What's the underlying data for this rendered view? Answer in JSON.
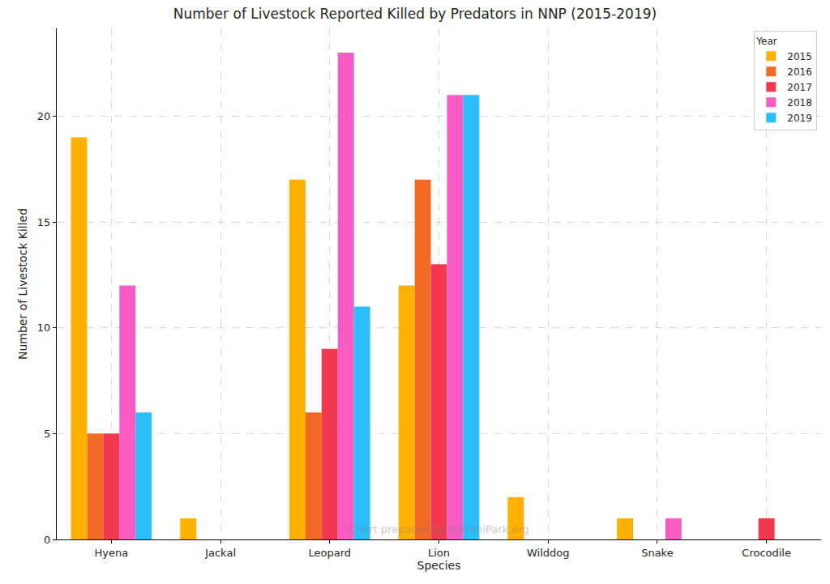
{
  "chart_data": {
    "type": "bar",
    "title": "Number of Livestock Reported Killed by Predators in NNP (2015-2019)",
    "x_label": "Species",
    "y_label": "Number of Livestock Killed",
    "legend_title": "Year",
    "annotations": [
      "Chart prepared by NairobiPark.org"
    ],
    "categories": [
      "Hyena",
      "Jackal",
      "Leopard",
      "Lion",
      "Wilddog",
      "Snake",
      "Crocodile"
    ],
    "series": [
      {
        "name": "2015",
        "color": "#ffb000",
        "values": [
          19,
          1,
          17,
          12,
          2,
          1,
          0
        ]
      },
      {
        "name": "2016",
        "color": "#f26a24",
        "values": [
          5,
          0,
          6,
          17,
          0,
          0,
          0
        ]
      },
      {
        "name": "2017",
        "color": "#f2384f",
        "values": [
          5,
          0,
          9,
          13,
          0,
          0,
          1
        ]
      },
      {
        "name": "2018",
        "color": "#f85bc2",
        "values": [
          12,
          0,
          23,
          21,
          0,
          1,
          0
        ]
      },
      {
        "name": "2019",
        "color": "#2bbdfc",
        "values": [
          6,
          0,
          11,
          21,
          0,
          0,
          0
        ]
      }
    ],
    "ylim": [
      0,
      24.15
    ],
    "yticks": [
      0,
      5,
      10,
      15,
      20
    ],
    "grid": true,
    "legend": "upper right"
  }
}
